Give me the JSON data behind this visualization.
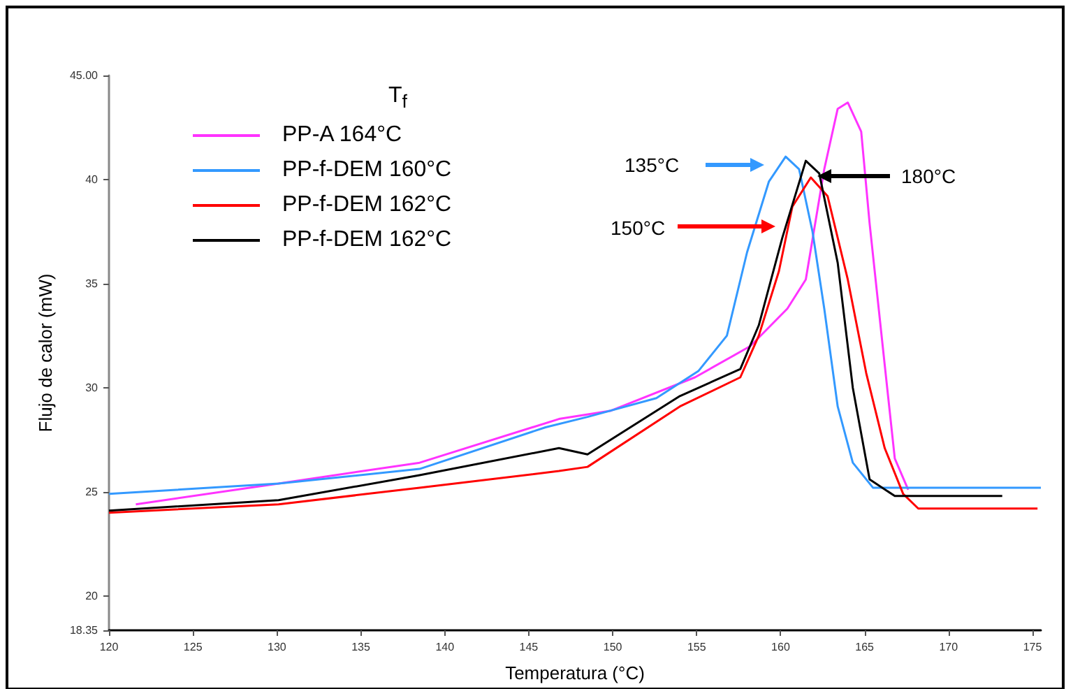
{
  "chart_data": {
    "type": "line",
    "xlabel": "Temperatura (°C)",
    "ylabel": "Flujo de calor (mW)",
    "legend_title": "T$_{f}$",
    "legend": "top left",
    "grid": false,
    "marker": "none",
    "line_style": "solid",
    "xlim": [
      120,
      175.5
    ],
    "xticks": [
      120,
      125,
      130,
      135,
      140,
      145,
      150,
      155,
      160,
      165,
      170,
      175
    ],
    "ylim": [
      18.35,
      45
    ],
    "yticks": [
      {
        "value": 18.35,
        "label": "18.35"
      },
      20,
      25,
      30,
      35,
      40,
      {
        "value": 45,
        "label": "45.00"
      }
    ],
    "series": [
      {
        "name": "PP-A 164°C",
        "color": "#ff33ff",
        "x": [
          121.6,
          130.1,
          138.5,
          146.8,
          149.9,
          154.9,
          158.2,
          160.4,
          161.5,
          162.6,
          163.4,
          164.0,
          164.8,
          165.3,
          166.2,
          166.8,
          167.6
        ],
        "values": [
          24.4,
          25.4,
          26.4,
          28.5,
          28.9,
          30.5,
          32.0,
          33.8,
          35.2,
          40.5,
          43.4,
          43.7,
          42.3,
          37.9,
          31.1,
          26.6,
          25.1
        ]
      },
      {
        "name": "PP-f-DEM 160°C",
        "color": "#3399ff",
        "x": [
          120,
          130.1,
          138.5,
          146,
          148.5,
          152.6,
          155.1,
          156.8,
          158,
          159.3,
          160.3,
          161.1,
          161.9,
          162.6,
          163.4,
          164.3,
          165.5,
          166.8,
          175.5
        ],
        "values": [
          24.9,
          25.4,
          26.1,
          28.1,
          28.6,
          29.5,
          30.8,
          32.5,
          36.5,
          39.9,
          41.1,
          40.5,
          37.5,
          33.8,
          29.1,
          26.4,
          25.2,
          25.2,
          25.2
        ]
      },
      {
        "name": "PP-f-DEM 162°C",
        "color": "#ff0000",
        "x": [
          120,
          130.1,
          138.5,
          146.8,
          148.5,
          154.0,
          157.6,
          158.7,
          159.9,
          160.7,
          161.8,
          162.8,
          164.0,
          165.1,
          166.2,
          167.3,
          168.2,
          175.3
        ],
        "values": [
          24.0,
          24.4,
          25.2,
          26.0,
          26.2,
          29.1,
          30.5,
          32.5,
          35.6,
          38.7,
          40.1,
          39.2,
          35.2,
          30.7,
          27.1,
          24.9,
          24.2,
          24.2
        ]
      },
      {
        "name": "PP-f-DEM 162°C",
        "color": "#000000",
        "x": [
          120,
          130.1,
          138.5,
          146.8,
          148.5,
          154.0,
          157.6,
          158.7,
          160.1,
          161.5,
          162.3,
          163.4,
          164.3,
          165.3,
          166.8,
          170.1,
          173.2
        ],
        "values": [
          24.1,
          24.6,
          25.8,
          27.1,
          26.8,
          29.6,
          30.9,
          33.0,
          37.2,
          40.9,
          40.3,
          36.0,
          30.0,
          25.6,
          24.8,
          24.8,
          24.8
        ]
      }
    ],
    "annotations": [
      "135°C",
      "150°C",
      "180°C"
    ]
  }
}
